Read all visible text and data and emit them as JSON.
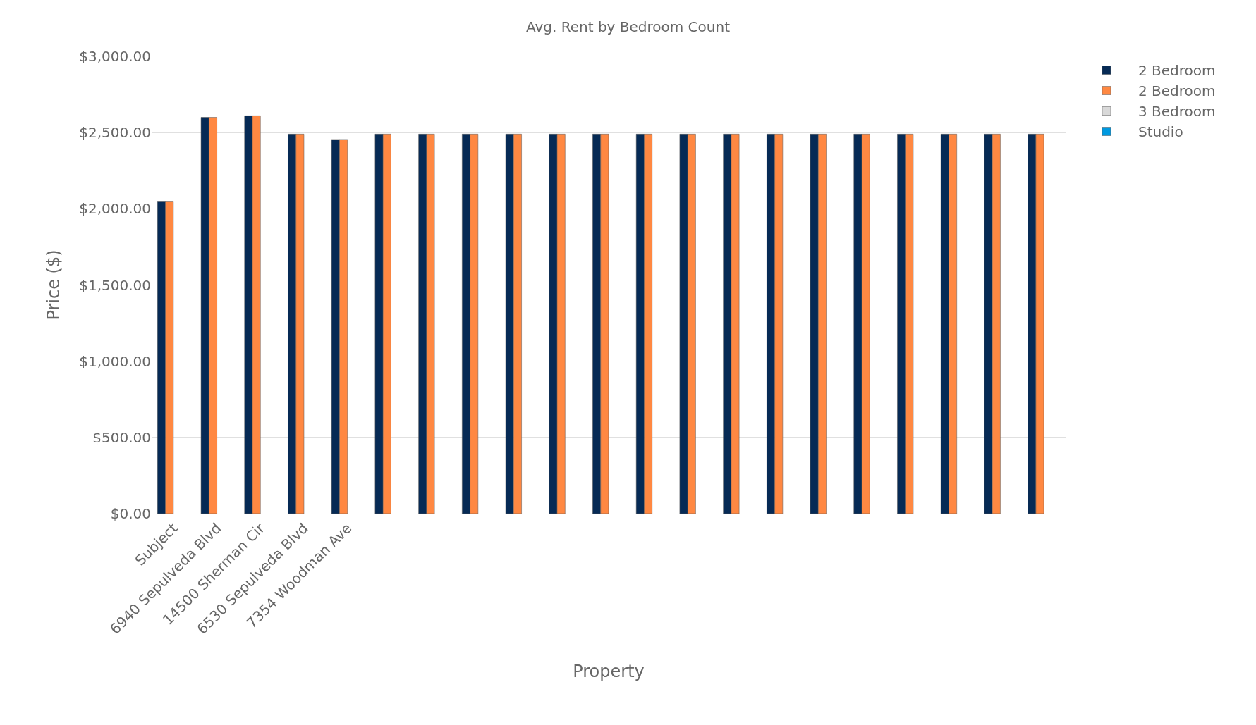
{
  "chart_data": {
    "type": "bar",
    "title": "Avg. Rent by Bedroom Count",
    "xlabel": "Property",
    "ylabel": "Price ($)",
    "categories": [
      "Subject",
      "6940 Sepulveda Blvd",
      "14500 Sherman Cir",
      "6530 Sepulveda Blvd",
      "7354 Woodman Ave",
      null,
      null,
      null,
      null,
      null,
      null,
      null,
      null,
      null,
      null,
      null,
      null,
      null,
      null,
      null,
      null
    ],
    "series": [
      {
        "name": "2 Bedroom",
        "color": "#062a55",
        "values": [
          2050,
          2600,
          2610,
          2490,
          2455,
          2490,
          2490,
          2490,
          2490,
          2490,
          2490,
          2490,
          2490,
          2490,
          2490,
          2490,
          2490,
          2490,
          2490,
          2490,
          2490
        ]
      },
      {
        "name": "2 Bedroom",
        "color": "#ff8842",
        "values": [
          2050,
          2600,
          2610,
          2490,
          2455,
          2490,
          2490,
          2490,
          2490,
          2490,
          2490,
          2490,
          2490,
          2490,
          2490,
          2490,
          2490,
          2490,
          2490,
          2490,
          2490
        ]
      },
      {
        "name": "3 Bedroom",
        "color": "#d9d9d9",
        "values": [
          null,
          null,
          null,
          null,
          null,
          null,
          null,
          null,
          null,
          null,
          null,
          null,
          null,
          null,
          null,
          null,
          null,
          null,
          null,
          null,
          null
        ]
      },
      {
        "name": "Studio",
        "color": "#0099e0",
        "values": [
          null,
          null,
          null,
          null,
          null,
          null,
          null,
          null,
          null,
          null,
          null,
          null,
          null,
          null,
          null,
          null,
          null,
          null,
          null,
          null,
          null
        ]
      }
    ],
    "ylim": [
      0,
      3000
    ],
    "yticks": [
      {
        "value": 0,
        "label": "$0.00"
      },
      {
        "value": 500,
        "label": "$500.00"
      },
      {
        "value": 1000,
        "label": "$1,000.00"
      },
      {
        "value": 1500,
        "label": "$1,500.00"
      },
      {
        "value": 2000,
        "label": "$2,000.00"
      },
      {
        "value": 2500,
        "label": "$2,500.00"
      },
      {
        "value": 3000,
        "label": "$3,000.00"
      }
    ],
    "grid": "y",
    "legend": "top right"
  }
}
